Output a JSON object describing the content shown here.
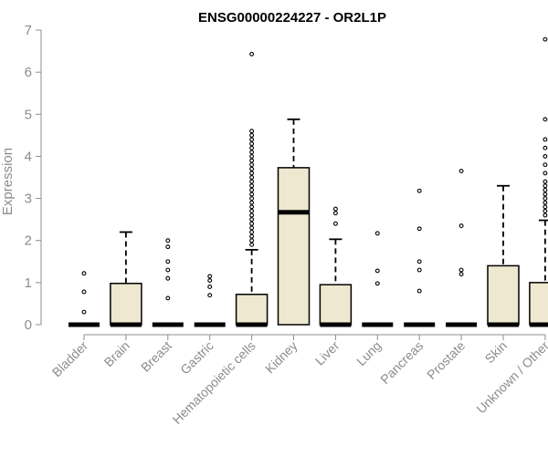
{
  "chart_data": {
    "type": "box",
    "title": "ENSG00000224227 - OR2L1P",
    "xlabel": "",
    "ylabel": "Expression",
    "ylim": [
      0,
      7
    ],
    "yticks": [
      0,
      1,
      2,
      3,
      4,
      5,
      6,
      7
    ],
    "box_fill": "#eee8d0",
    "categories": [
      "Bladder",
      "Brain",
      "Breast",
      "Gastric",
      "Hematopoietic cells",
      "Kidney",
      "Liver",
      "Lung",
      "Pancreas",
      "Prostate",
      "Skin",
      "Unknown / Other"
    ],
    "boxes": [
      {
        "category": "Bladder",
        "min": 0,
        "q1": 0,
        "median": 0,
        "q3": 0,
        "max": 0,
        "outliers": [
          0.3,
          0.78,
          1.22
        ]
      },
      {
        "category": "Brain",
        "min": 0,
        "q1": 0,
        "median": 0,
        "q3": 0.98,
        "max": 2.2,
        "outliers": []
      },
      {
        "category": "Breast",
        "min": 0,
        "q1": 0,
        "median": 0,
        "q3": 0,
        "max": 0,
        "outliers": [
          0.63,
          1.1,
          1.3,
          1.5,
          1.85,
          2.0
        ]
      },
      {
        "category": "Gastric",
        "min": 0,
        "q1": 0,
        "median": 0,
        "q3": 0,
        "max": 0,
        "outliers": [
          0.7,
          0.9,
          1.05,
          1.15
        ]
      },
      {
        "category": "Hematopoietic cells",
        "min": 0,
        "q1": 0,
        "median": 0,
        "q3": 0.72,
        "max": 1.78,
        "outliers": [
          1.9,
          2.0,
          2.1,
          2.2,
          2.3,
          2.4,
          2.5,
          2.6,
          2.7,
          2.8,
          2.9,
          3.0,
          3.1,
          3.2,
          3.3,
          3.4,
          3.5,
          3.6,
          3.7,
          3.8,
          3.9,
          4.0,
          4.1,
          4.2,
          4.3,
          4.4,
          4.5,
          4.6,
          6.43
        ]
      },
      {
        "category": "Kidney",
        "min": 0,
        "q1": 0,
        "median": 2.67,
        "q3": 3.73,
        "max": 4.88,
        "outliers": []
      },
      {
        "category": "Liver",
        "min": 0,
        "q1": 0,
        "median": 0,
        "q3": 0.95,
        "max": 2.03,
        "outliers": [
          2.4,
          2.65,
          2.75
        ]
      },
      {
        "category": "Lung",
        "min": 0,
        "q1": 0,
        "median": 0,
        "q3": 0,
        "max": 0,
        "outliers": [
          0.98,
          1.28,
          2.17
        ]
      },
      {
        "category": "Pancreas",
        "min": 0,
        "q1": 0,
        "median": 0,
        "q3": 0,
        "max": 0,
        "outliers": [
          0.8,
          1.3,
          1.5,
          2.28,
          3.18
        ]
      },
      {
        "category": "Prostate",
        "min": 0,
        "q1": 0,
        "median": 0,
        "q3": 0,
        "max": 0,
        "outliers": [
          1.2,
          1.3,
          2.35,
          3.65
        ]
      },
      {
        "category": "Skin",
        "min": 0,
        "q1": 0,
        "median": 0,
        "q3": 1.4,
        "max": 3.3,
        "outliers": []
      },
      {
        "category": "Unknown / Other",
        "min": 0,
        "q1": 0,
        "median": 0,
        "q3": 1.0,
        "max": 2.48,
        "outliers": [
          2.6,
          2.7,
          2.8,
          2.9,
          3.0,
          3.1,
          3.2,
          3.3,
          3.4,
          3.6,
          3.8,
          4.0,
          4.2,
          4.4,
          4.88,
          6.78
        ]
      }
    ]
  }
}
